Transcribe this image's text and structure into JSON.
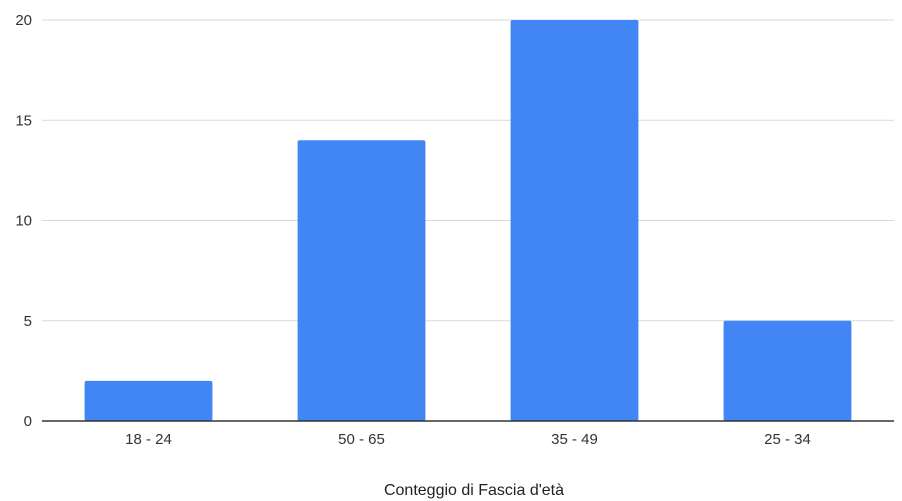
{
  "chart_data": {
    "type": "bar",
    "categories": [
      "18 - 24",
      "50 - 65",
      "35 - 49",
      "25 - 34"
    ],
    "values": [
      2,
      14,
      20,
      5
    ],
    "title": "",
    "xlabel": "Conteggio di Fascia d'età",
    "ylabel": "",
    "ylim": [
      0,
      20
    ],
    "yticks": [
      0,
      5,
      10,
      15,
      20
    ],
    "grid": true,
    "legend": "none",
    "colors": {
      "bar": "#4285f4",
      "grid": "#d9d9d9",
      "baseline": "#333333"
    }
  }
}
